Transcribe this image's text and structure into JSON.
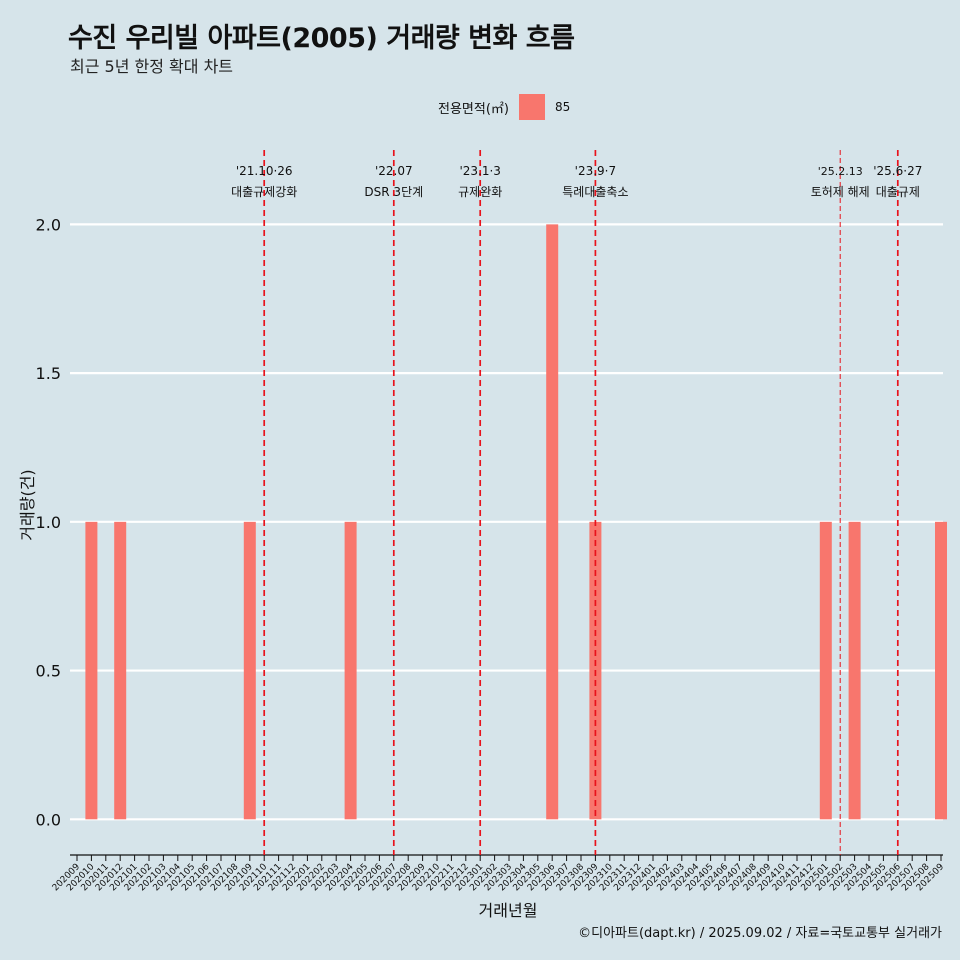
{
  "header": {
    "title": "수진 우리빌 아파트(2005) 거래량 변화 흐름",
    "subtitle": "최근 5년 한정 확대 차트"
  },
  "legend": {
    "title": "전용면적(㎡)",
    "label": "85",
    "color": "#f8766d"
  },
  "caption": "©디아파트(dapt.kr) / 2025.09.02 / 자료=국토교통부 실거래가",
  "chart_data": {
    "type": "bar",
    "title": "수진 우리빌 아파트(2005) 거래량 변화 흐름",
    "xlabel": "거래년월",
    "ylabel": "거래량(건)",
    "ylim": [
      -0.12,
      2.25
    ],
    "yticks": [
      0,
      0.5,
      1,
      1.5,
      2
    ],
    "ytick_labels": [
      "0.0",
      "0.5",
      "1.0",
      "1.5",
      "2.0"
    ],
    "categories": [
      "202009",
      "202010",
      "202011",
      "202012",
      "202101",
      "202102",
      "202103",
      "202104",
      "202105",
      "202106",
      "202107",
      "202108",
      "202109",
      "202110",
      "202111",
      "202112",
      "202201",
      "202202",
      "202203",
      "202204",
      "202205",
      "202206",
      "202207",
      "202208",
      "202209",
      "202210",
      "202211",
      "202212",
      "202301",
      "202302",
      "202303",
      "202304",
      "202305",
      "202306",
      "202307",
      "202308",
      "202309",
      "202310",
      "202311",
      "202312",
      "202401",
      "202402",
      "202403",
      "202404",
      "202405",
      "202406",
      "202407",
      "202408",
      "202409",
      "202410",
      "202411",
      "202412",
      "202501",
      "202502",
      "202503",
      "202504",
      "202505",
      "202506",
      "202507",
      "202508",
      "202509"
    ],
    "series": [
      {
        "name": "85",
        "color": "#f8766d",
        "points": [
          {
            "x": "202010",
            "y": 1
          },
          {
            "x": "202012",
            "y": 1
          },
          {
            "x": "202109",
            "y": 1
          },
          {
            "x": "202204",
            "y": 1
          },
          {
            "x": "202306",
            "y": 2
          },
          {
            "x": "202309",
            "y": 1
          },
          {
            "x": "202501",
            "y": 1
          },
          {
            "x": "202503",
            "y": 1
          },
          {
            "x": "202509",
            "y": 1
          }
        ]
      }
    ],
    "annotations": [
      {
        "x": "202110",
        "date": "'21.10·26",
        "label": "대출규제강화",
        "style": "dashed-red"
      },
      {
        "x": "202207",
        "date": "'22.07",
        "label": "DSR 3단계",
        "style": "dashed-red"
      },
      {
        "x": "202301",
        "date": "'23.1·3",
        "label": "규제완화",
        "style": "dashed-red"
      },
      {
        "x": "202309",
        "date": "'23.9·7",
        "label": "특례대출축소",
        "style": "dashed-red"
      },
      {
        "x": "202502",
        "date": "'25.2.13",
        "label": "토허제 해제",
        "style": "thin-red"
      },
      {
        "x": "202506",
        "date": "'25.6·27",
        "label": "대출규제",
        "style": "dashed-red"
      }
    ]
  }
}
